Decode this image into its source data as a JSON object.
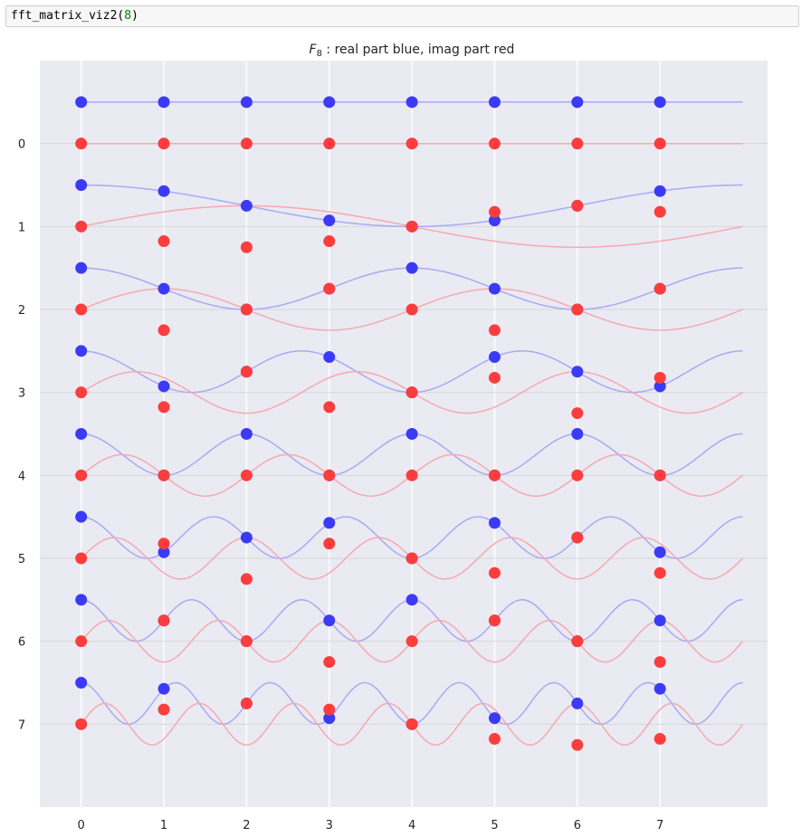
{
  "cell": {
    "code_prefix": "fft_matrix_viz2(",
    "code_arg": "8",
    "code_suffix": ")"
  },
  "chart_data": {
    "type": "scatter",
    "title": "F₈ : real part blue, imag part red",
    "title_main": "F",
    "title_sub": "8",
    "title_rest": " : real part blue, imag part red",
    "n": 8,
    "x_ticks": [
      "0",
      "1",
      "2",
      "3",
      "4",
      "5",
      "6",
      "7"
    ],
    "y_ticks": [
      "0",
      "1",
      "2",
      "3",
      "4",
      "5",
      "6",
      "7"
    ],
    "xlim": [
      -0.5,
      8.3
    ],
    "ylim": [
      8.0,
      -1.0
    ],
    "offset_real": -0.25,
    "amplitude": 0.25,
    "grid": true,
    "colors": {
      "background": "#eaeaf2",
      "grid": "#ffffff",
      "row_line": "#d7d7d7",
      "real": "#3b3bf7",
      "imag": "#fc3d3d",
      "real_curve": "#a9a9f6",
      "imag_curve": "#f6a9b0"
    },
    "series": [
      {
        "name": "real",
        "rows": [
          [
            1.0,
            1.0,
            1.0,
            1.0,
            1.0,
            1.0,
            1.0,
            1.0
          ],
          [
            1.0,
            0.707,
            0.0,
            -0.707,
            -1.0,
            -0.707,
            0.0,
            0.707
          ],
          [
            1.0,
            0.0,
            -1.0,
            0.0,
            1.0,
            0.0,
            -1.0,
            0.0
          ],
          [
            1.0,
            -0.707,
            0.0,
            0.707,
            -1.0,
            0.707,
            0.0,
            -0.707
          ],
          [
            1.0,
            -1.0,
            1.0,
            -1.0,
            1.0,
            -1.0,
            1.0,
            -1.0
          ],
          [
            1.0,
            -0.707,
            0.0,
            0.707,
            -1.0,
            0.707,
            0.0,
            -0.707
          ],
          [
            1.0,
            0.0,
            -1.0,
            0.0,
            1.0,
            0.0,
            -1.0,
            0.0
          ],
          [
            1.0,
            0.707,
            0.0,
            -0.707,
            -1.0,
            -0.707,
            0.0,
            0.707
          ]
        ]
      },
      {
        "name": "imag",
        "rows": [
          [
            0.0,
            0.0,
            0.0,
            0.0,
            0.0,
            0.0,
            0.0,
            0.0
          ],
          [
            0.0,
            -0.707,
            -1.0,
            -0.707,
            0.0,
            0.707,
            1.0,
            0.707
          ],
          [
            0.0,
            -1.0,
            0.0,
            1.0,
            0.0,
            -1.0,
            0.0,
            1.0
          ],
          [
            0.0,
            -0.707,
            1.0,
            -0.707,
            0.0,
            0.707,
            -1.0,
            0.707
          ],
          [
            0.0,
            0.0,
            0.0,
            0.0,
            0.0,
            0.0,
            0.0,
            0.0
          ],
          [
            0.0,
            0.707,
            -1.0,
            0.707,
            0.0,
            -0.707,
            1.0,
            -0.707
          ],
          [
            0.0,
            1.0,
            0.0,
            -1.0,
            0.0,
            1.0,
            0.0,
            -1.0
          ],
          [
            0.0,
            0.707,
            1.0,
            0.707,
            0.0,
            -0.707,
            -1.0,
            -0.707
          ]
        ]
      }
    ]
  }
}
